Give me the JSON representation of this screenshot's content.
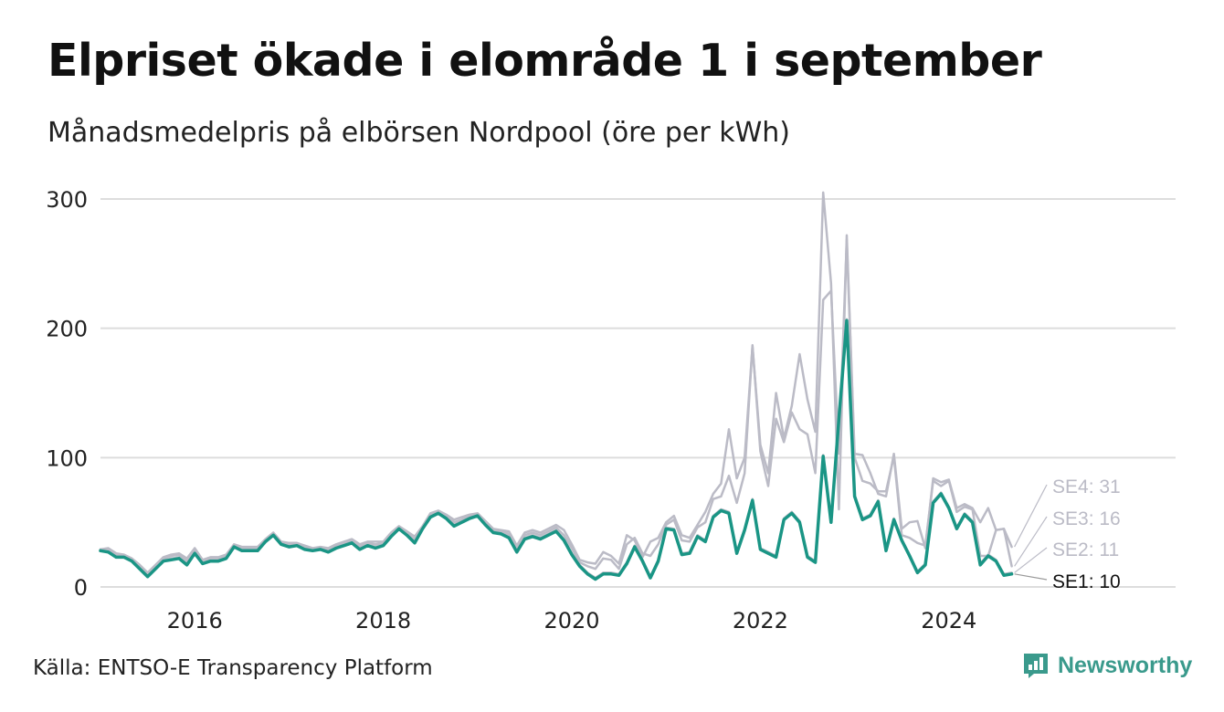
{
  "title": "Elpriset ökade i elområde 1 i september",
  "subtitle": "Månadsmedelpris på elbörsen Nordpool (öre per kWh)",
  "source": "Källa: ENTSO-E Transparency Platform",
  "brand": {
    "name": "Newsworthy",
    "icon": "newsworthy-logo-icon"
  },
  "colors": {
    "highlight": "#1a9585",
    "other": "#bbbbc6",
    "grid": "#dddddd",
    "highlight_label": "#111111",
    "other_label": "#bbbbc6"
  },
  "chart_data": {
    "type": "line",
    "ylim": [
      0,
      305
    ],
    "xlim": [
      "2015-01",
      "2026-03"
    ],
    "yticks": [
      "0",
      "100",
      "200",
      "300"
    ],
    "xticks": [
      "2016",
      "2018",
      "2020",
      "2022",
      "2024"
    ],
    "grid": "horizontal",
    "x": [
      "2015-01",
      "2015-02",
      "2015-03",
      "2015-04",
      "2015-05",
      "2015-06",
      "2015-07",
      "2015-08",
      "2015-09",
      "2015-10",
      "2015-11",
      "2015-12",
      "2016-01",
      "2016-02",
      "2016-03",
      "2016-04",
      "2016-05",
      "2016-06",
      "2016-07",
      "2016-08",
      "2016-09",
      "2016-10",
      "2016-11",
      "2016-12",
      "2017-01",
      "2017-02",
      "2017-03",
      "2017-04",
      "2017-05",
      "2017-06",
      "2017-07",
      "2017-08",
      "2017-09",
      "2017-10",
      "2017-11",
      "2017-12",
      "2018-01",
      "2018-02",
      "2018-03",
      "2018-04",
      "2018-05",
      "2018-06",
      "2018-07",
      "2018-08",
      "2018-09",
      "2018-10",
      "2018-11",
      "2018-12",
      "2019-01",
      "2019-02",
      "2019-03",
      "2019-04",
      "2019-05",
      "2019-06",
      "2019-07",
      "2019-08",
      "2019-09",
      "2019-10",
      "2019-11",
      "2019-12",
      "2020-01",
      "2020-02",
      "2020-03",
      "2020-04",
      "2020-05",
      "2020-06",
      "2020-07",
      "2020-08",
      "2020-09",
      "2020-10",
      "2020-11",
      "2020-12",
      "2021-01",
      "2021-02",
      "2021-03",
      "2021-04",
      "2021-05",
      "2021-06",
      "2021-07",
      "2021-08",
      "2021-09",
      "2021-10",
      "2021-11",
      "2021-12",
      "2022-01",
      "2022-02",
      "2022-03",
      "2022-04",
      "2022-05",
      "2022-06",
      "2022-07",
      "2022-08",
      "2022-09",
      "2022-10",
      "2022-11",
      "2022-12",
      "2023-01",
      "2023-02",
      "2023-03",
      "2023-04",
      "2023-05",
      "2023-06",
      "2023-07",
      "2023-08",
      "2023-09",
      "2023-10",
      "2023-11",
      "2023-12",
      "2024-01",
      "2024-02",
      "2024-03",
      "2024-04",
      "2024-05",
      "2024-06",
      "2024-07",
      "2024-08",
      "2024-09"
    ],
    "series": [
      {
        "name": "SE1",
        "label": "SE1: 10",
        "highlight": true,
        "values": [
          28,
          27,
          23,
          23,
          20,
          14,
          8,
          14,
          20,
          21,
          22,
          17,
          26,
          18,
          20,
          20,
          22,
          31,
          28,
          28,
          28,
          35,
          40,
          33,
          31,
          32,
          29,
          28,
          29,
          27,
          30,
          32,
          34,
          29,
          32,
          30,
          32,
          39,
          45,
          40,
          34,
          45,
          54,
          57,
          53,
          47,
          50,
          53,
          55,
          48,
          42,
          41,
          38,
          27,
          37,
          39,
          37,
          40,
          43,
          36,
          25,
          16,
          10,
          6,
          10,
          10,
          9,
          18,
          31,
          20,
          7,
          20,
          45,
          44,
          25,
          26,
          39,
          35,
          54,
          59,
          57,
          26,
          44,
          67,
          29,
          26,
          23,
          52,
          57,
          50,
          23,
          19,
          101,
          50,
          130,
          206,
          70,
          52,
          55,
          66,
          28,
          52,
          36,
          24,
          11,
          17,
          65,
          72,
          61,
          45,
          56,
          50,
          17,
          24,
          20,
          9,
          10
        ]
      },
      {
        "name": "SE2",
        "label": "SE2: 11",
        "highlight": false,
        "values": [
          29,
          28,
          24,
          24,
          21,
          15,
          9,
          15,
          21,
          22,
          23,
          18,
          27,
          19,
          21,
          21,
          23,
          32,
          29,
          29,
          29,
          36,
          41,
          34,
          32,
          33,
          30,
          29,
          30,
          28,
          31,
          33,
          35,
          30,
          33,
          31,
          33,
          40,
          46,
          41,
          35,
          46,
          55,
          58,
          54,
          48,
          51,
          54,
          56,
          49,
          43,
          42,
          39,
          28,
          38,
          40,
          38,
          41,
          44,
          37,
          26,
          17,
          11,
          7,
          11,
          11,
          10,
          19,
          32,
          21,
          8,
          21,
          46,
          45,
          26,
          27,
          40,
          36,
          55,
          60,
          58,
          27,
          45,
          68,
          30,
          27,
          24,
          53,
          58,
          51,
          24,
          20,
          102,
          51,
          131,
          207,
          71,
          53,
          56,
          67,
          29,
          53,
          37,
          25,
          12,
          18,
          66,
          73,
          62,
          46,
          57,
          51,
          18,
          25,
          21,
          10,
          11
        ]
      },
      {
        "name": "SE3",
        "label": "SE3: 16",
        "highlight": false,
        "values": [
          29,
          29,
          25,
          24,
          21,
          16,
          10,
          16,
          22,
          24,
          25,
          20,
          29,
          20,
          22,
          22,
          24,
          32,
          30,
          30,
          30,
          36,
          41,
          34,
          33,
          33,
          31,
          29,
          30,
          29,
          32,
          34,
          36,
          31,
          34,
          33,
          34,
          41,
          46,
          42,
          37,
          46,
          56,
          58,
          55,
          50,
          52,
          55,
          56,
          50,
          44,
          43,
          41,
          30,
          40,
          42,
          40,
          43,
          46,
          40,
          30,
          19,
          16,
          14,
          22,
          21,
          14,
          33,
          38,
          26,
          24,
          33,
          48,
          52,
          36,
          35,
          46,
          50,
          68,
          70,
          86,
          65,
          88,
          187,
          105,
          78,
          130,
          112,
          135,
          122,
          118,
          88,
          222,
          229,
          103,
          268,
          100,
          82,
          80,
          74,
          74,
          101,
          40,
          38,
          34,
          32,
          82,
          78,
          82,
          58,
          62,
          60,
          24,
          24,
          44,
          45,
          16
        ]
      },
      {
        "name": "SE4",
        "label": "SE4: 31",
        "highlight": false,
        "values": [
          29,
          30,
          26,
          25,
          22,
          17,
          11,
          17,
          23,
          25,
          26,
          22,
          30,
          21,
          23,
          23,
          25,
          33,
          31,
          31,
          31,
          37,
          42,
          35,
          34,
          34,
          32,
          30,
          31,
          30,
          33,
          35,
          37,
          33,
          35,
          35,
          35,
          42,
          47,
          43,
          39,
          47,
          57,
          59,
          56,
          52,
          54,
          56,
          57,
          51,
          45,
          44,
          43,
          32,
          42,
          44,
          42,
          45,
          48,
          44,
          33,
          21,
          19,
          18,
          27,
          24,
          18,
          40,
          36,
          23,
          35,
          38,
          50,
          55,
          40,
          38,
          48,
          58,
          72,
          80,
          122,
          84,
          100,
          186,
          110,
          88,
          150,
          115,
          140,
          180,
          145,
          120,
          305,
          235,
          60,
          272,
          103,
          102,
          88,
          72,
          70,
          103,
          45,
          50,
          51,
          30,
          84,
          81,
          83,
          61,
          64,
          61,
          50,
          61,
          44,
          45,
          31
        ]
      }
    ]
  }
}
